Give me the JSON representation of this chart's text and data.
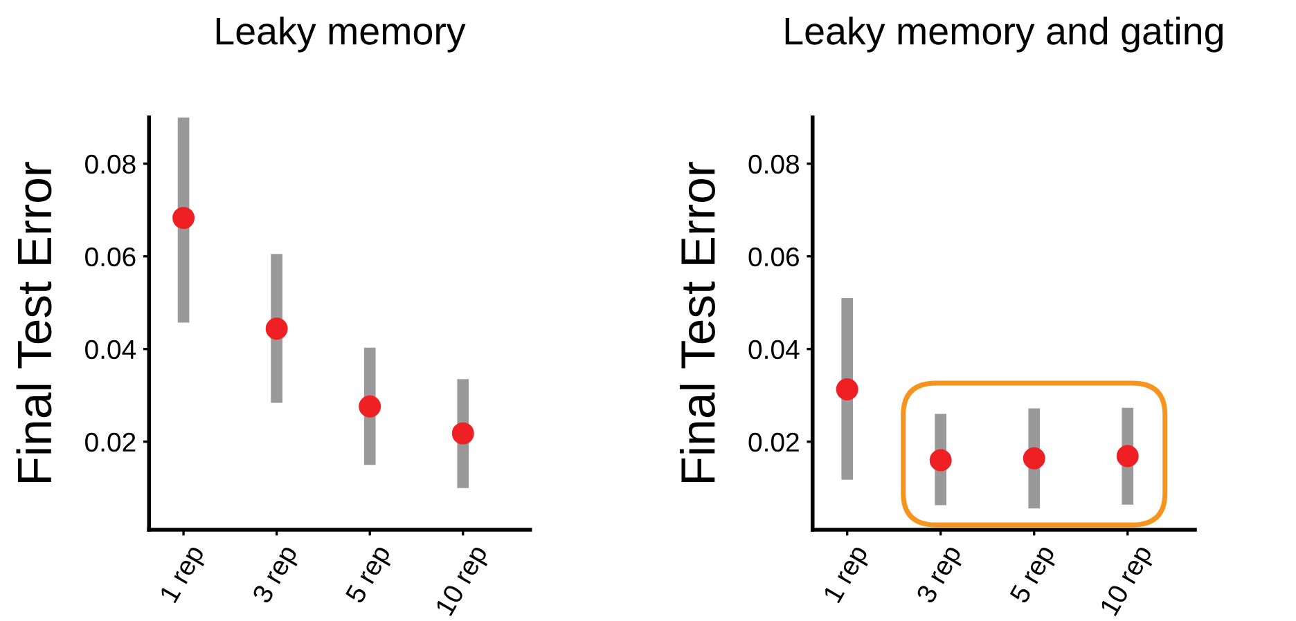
{
  "chart_data": [
    {
      "type": "scatter",
      "title": "Leaky memory",
      "ylabel": "Final Test Error",
      "categories": [
        "1 rep",
        "3 rep",
        "5 rep",
        "10 rep"
      ],
      "series": [
        {
          "color": "#ee2024",
          "values": [
            0.0683,
            0.0444,
            0.0276,
            0.0218
          ],
          "errors": [
            [
              0.0457,
              0.09
            ],
            [
              0.0284,
              0.0605
            ],
            [
              0.015,
              0.0403
            ],
            [
              0.01,
              0.0335
            ]
          ]
        }
      ],
      "ylim": [
        0.001,
        0.09
      ],
      "yticks": [
        0.02,
        0.04,
        0.06,
        0.08
      ],
      "marker": "circle",
      "grid": false,
      "legend": false
    },
    {
      "type": "scatter",
      "title": "Leaky memory and gating",
      "ylabel": "Final Test Error",
      "categories": [
        "1 rep",
        "3 rep",
        "5 rep",
        "10 rep"
      ],
      "series": [
        {
          "color": "#ee2024",
          "values": [
            0.0313,
            0.016,
            0.0164,
            0.0169
          ],
          "errors": [
            [
              0.0118,
              0.051
            ],
            [
              0.0063,
              0.026
            ],
            [
              0.0056,
              0.0272
            ],
            [
              0.0064,
              0.0273
            ]
          ]
        }
      ],
      "ylim": [
        0.001,
        0.09
      ],
      "yticks": [
        0.02,
        0.04,
        0.06,
        0.08
      ],
      "marker": "circle",
      "grid": false,
      "legend": false
    }
  ]
}
